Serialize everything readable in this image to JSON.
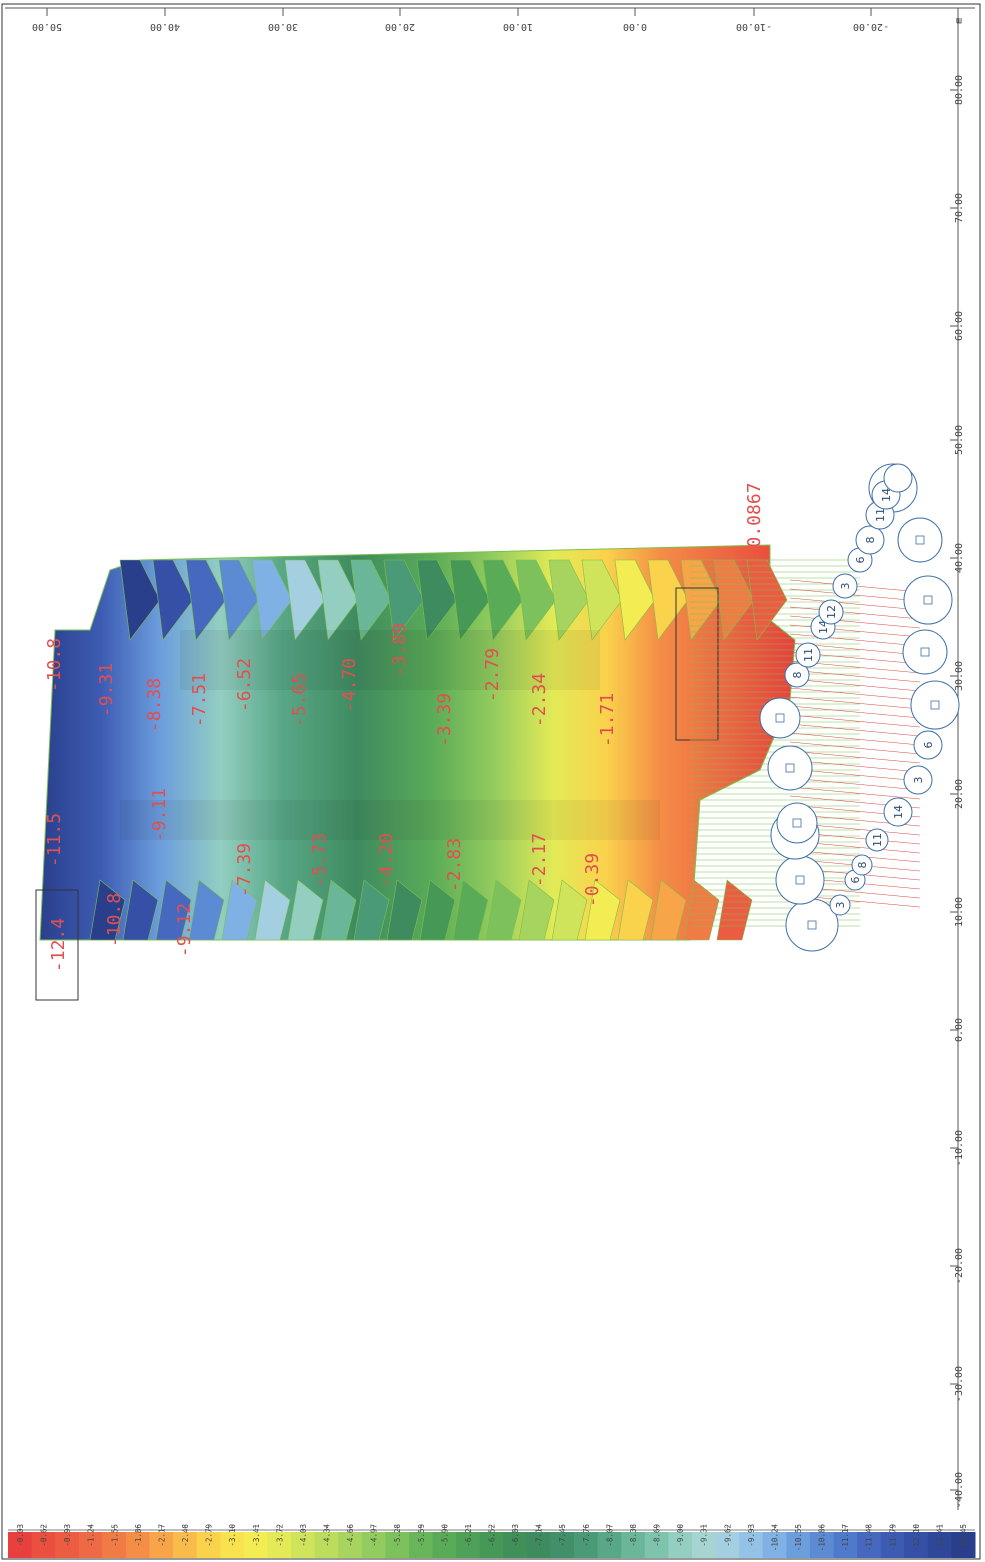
{
  "axes": {
    "x_ticks": [
      "50.00",
      "40.00",
      "30.00",
      "20.00",
      "10.00",
      "0.00",
      "-10.00",
      "-20.00"
    ],
    "y_ticks": [
      "80.00",
      "70.00",
      "60.00",
      "50.00",
      "40.00",
      "30.00",
      "20.00",
      "10.00",
      "0.00",
      "-10.00",
      "-20.00",
      "-30.00",
      "-40.00"
    ],
    "unit": "m"
  },
  "contour_labels": [
    "-12.4",
    "-10.8",
    "-9.12",
    "-7.39",
    "-5.73",
    "-4.20",
    "-2.83",
    "-2.17",
    "-0.39",
    "0.0867",
    "-10.8",
    "-9.31",
    "-8.38",
    "-9.11",
    "-7.51",
    "-6.52",
    "-5.65",
    "-4.70",
    "-3.89",
    "-3.39",
    "-2.79",
    "-2.34",
    "-1.71",
    "-11.5"
  ],
  "support_labels": [
    "3",
    "6",
    "8",
    "11",
    "14",
    "3",
    "6",
    "8",
    "11",
    "14",
    "12",
    "3",
    "6",
    "8",
    "11",
    "14"
  ],
  "legend": {
    "values": [
      "-0.03",
      "-0.62",
      "-0.93",
      "-1.24",
      "-1.55",
      "-1.86",
      "-2.17",
      "-2.48",
      "-2.79",
      "-3.10",
      "-3.41",
      "-3.72",
      "-4.03",
      "-4.34",
      "-4.66",
      "-4.97",
      "-5.28",
      "-5.59",
      "-5.90",
      "-6.21",
      "-6.52",
      "-6.83",
      "-7.14",
      "-7.45",
      "-7.76",
      "-8.07",
      "-8.38",
      "-8.69",
      "-9.00",
      "-9.31",
      "-9.62",
      "-9.93",
      "-10.24",
      "-10.55",
      "-10.86",
      "-11.17",
      "-11.48",
      "-11.79",
      "-12.10",
      "-12.41",
      "-12.45"
    ],
    "colors": [
      "#e8403e",
      "#ea4f40",
      "#ec5c42",
      "#ee6a44",
      "#f17b45",
      "#f48e46",
      "#f7a548",
      "#f9bc4a",
      "#fad24c",
      "#f8e34e",
      "#f3ec52",
      "#e3ea56",
      "#cfe45a",
      "#bcdc5c",
      "#a6d45e",
      "#92cb5e",
      "#7dc15c",
      "#69b65a",
      "#5aab58",
      "#4ea156",
      "#469856",
      "#41905a",
      "#3f8b60",
      "#42906a",
      "#4a9a78",
      "#58a787",
      "#6ab699",
      "#7ec4ad",
      "#93cec1",
      "#a5d4d3",
      "#a4cfe0",
      "#93c2e6",
      "#7fb1e4",
      "#6c9edd",
      "#5c8bd4",
      "#4f79ca",
      "#4669bf",
      "#3d5bb3",
      "#3550a6",
      "#2f4799",
      "#2a3f8c"
    ]
  },
  "colors": {
    "contour_label": "#e24f4f",
    "support_stroke": "#3e6fa8",
    "green_line": "#7cc04a",
    "red_line": "#d7473d"
  }
}
